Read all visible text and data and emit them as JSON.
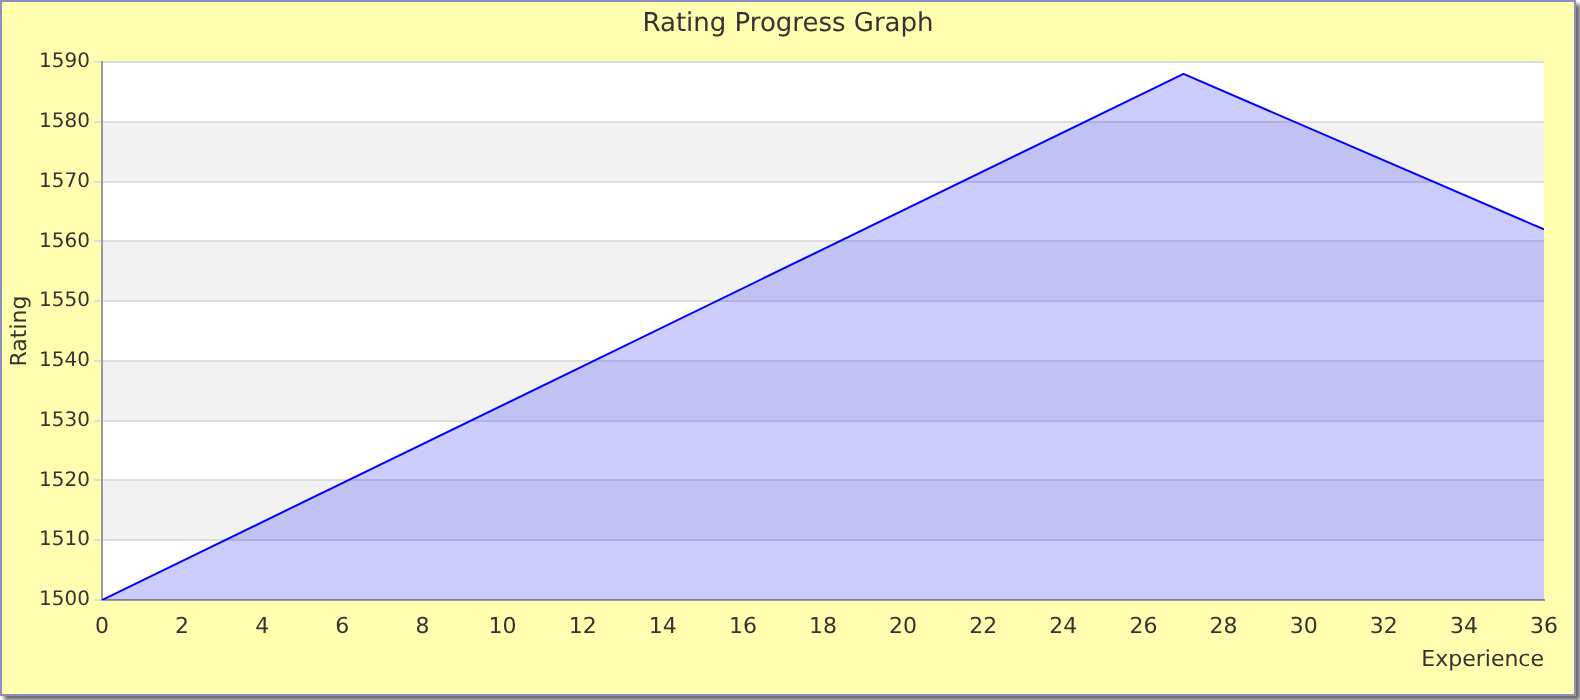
{
  "chart_data": {
    "type": "area",
    "title": "Rating Progress Graph",
    "xlabel": "Experience",
    "ylabel": "Rating",
    "x": [
      0,
      27,
      36
    ],
    "series": [
      {
        "color": "#0000ff",
        "values": [
          1500,
          1588,
          1562
        ]
      }
    ],
    "xlim": [
      0,
      36
    ],
    "xticks": [
      0,
      2,
      4,
      6,
      8,
      10,
      12,
      14,
      16,
      18,
      20,
      22,
      24,
      26,
      28,
      30,
      32,
      34,
      36
    ],
    "ylim": [
      1500,
      1590
    ],
    "yticks": [
      1500,
      1510,
      1520,
      1530,
      1540,
      1550,
      1560,
      1570,
      1580,
      1590
    ],
    "grid": "y",
    "legend": false,
    "marker": "none"
  }
}
